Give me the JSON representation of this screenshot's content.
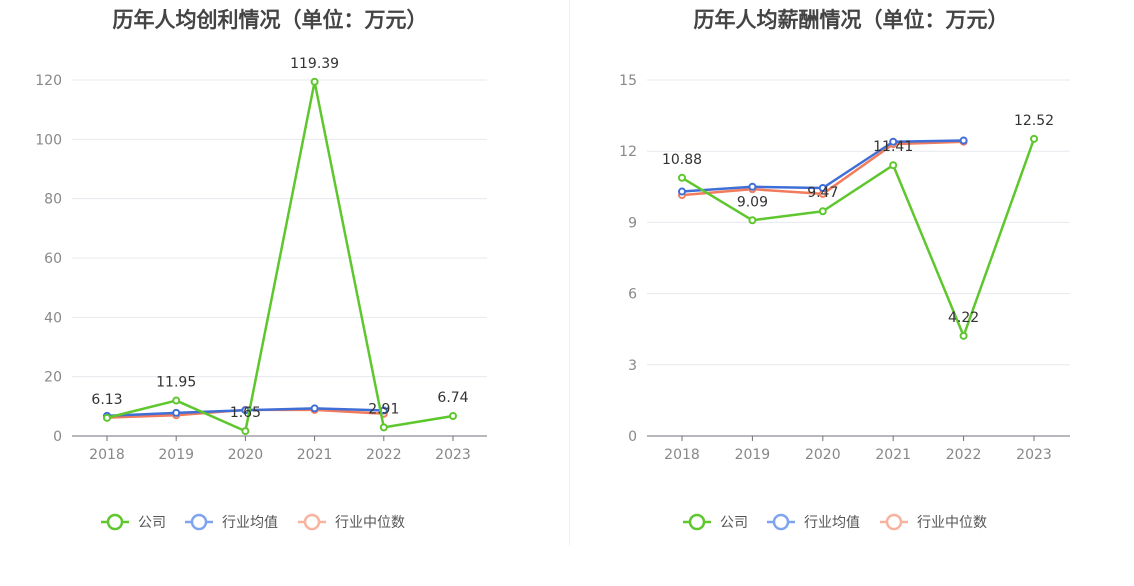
{
  "charts": [
    {
      "id": "left",
      "chart_data": {
        "type": "line",
        "title": "历年人均创利情况（单位：万元）",
        "categories": [
          "2018",
          "2019",
          "2020",
          "2021",
          "2022",
          "2023"
        ],
        "ylim": [
          0,
          120
        ],
        "yticks": [
          0,
          20,
          40,
          60,
          80,
          100,
          120
        ],
        "grid": true,
        "legend_position": "bottom",
        "series": [
          {
            "name": "公司",
            "color": "#5ec72d",
            "values": [
              6.13,
              11.95,
              1.65,
              119.39,
              2.91,
              6.74
            ],
            "labels": [
              "6.13",
              "11.95",
              "1.65",
              "119.39",
              "2.91",
              "6.74"
            ]
          },
          {
            "name": "行业均值",
            "color": "#3f6fd6",
            "values": [
              6.8,
              7.8,
              8.7,
              9.3,
              8.6,
              null
            ]
          },
          {
            "name": "行业中位数",
            "color": "#f17b5c",
            "values": [
              6.2,
              7.0,
              8.8,
              8.8,
              7.5,
              null
            ]
          }
        ]
      }
    },
    {
      "id": "right",
      "chart_data": {
        "type": "line",
        "title": "历年人均薪酬情况（单位：万元）",
        "categories": [
          "2018",
          "2019",
          "2020",
          "2021",
          "2022",
          "2023"
        ],
        "ylim": [
          0,
          15
        ],
        "yticks": [
          0,
          3,
          6,
          9,
          12,
          15
        ],
        "grid": true,
        "legend_position": "bottom",
        "series": [
          {
            "name": "公司",
            "color": "#5ec72d",
            "values": [
              10.88,
              9.09,
              9.47,
              11.41,
              4.22,
              12.52
            ],
            "labels": [
              "10.88",
              "9.09",
              "9.47",
              "11.41",
              "4.22",
              "12.52"
            ]
          },
          {
            "name": "行业均值",
            "color": "#3f6fd6",
            "values": [
              10.3,
              10.5,
              10.45,
              12.4,
              12.45,
              null
            ]
          },
          {
            "name": "行业中位数",
            "color": "#f17b5c",
            "values": [
              10.15,
              10.4,
              10.2,
              12.3,
              12.4,
              null
            ]
          }
        ]
      }
    }
  ],
  "legend_colors": {
    "公司": "#5ec72d",
    "行业均值": "#7fa4ef",
    "行业中位数": "#f7b39f"
  }
}
